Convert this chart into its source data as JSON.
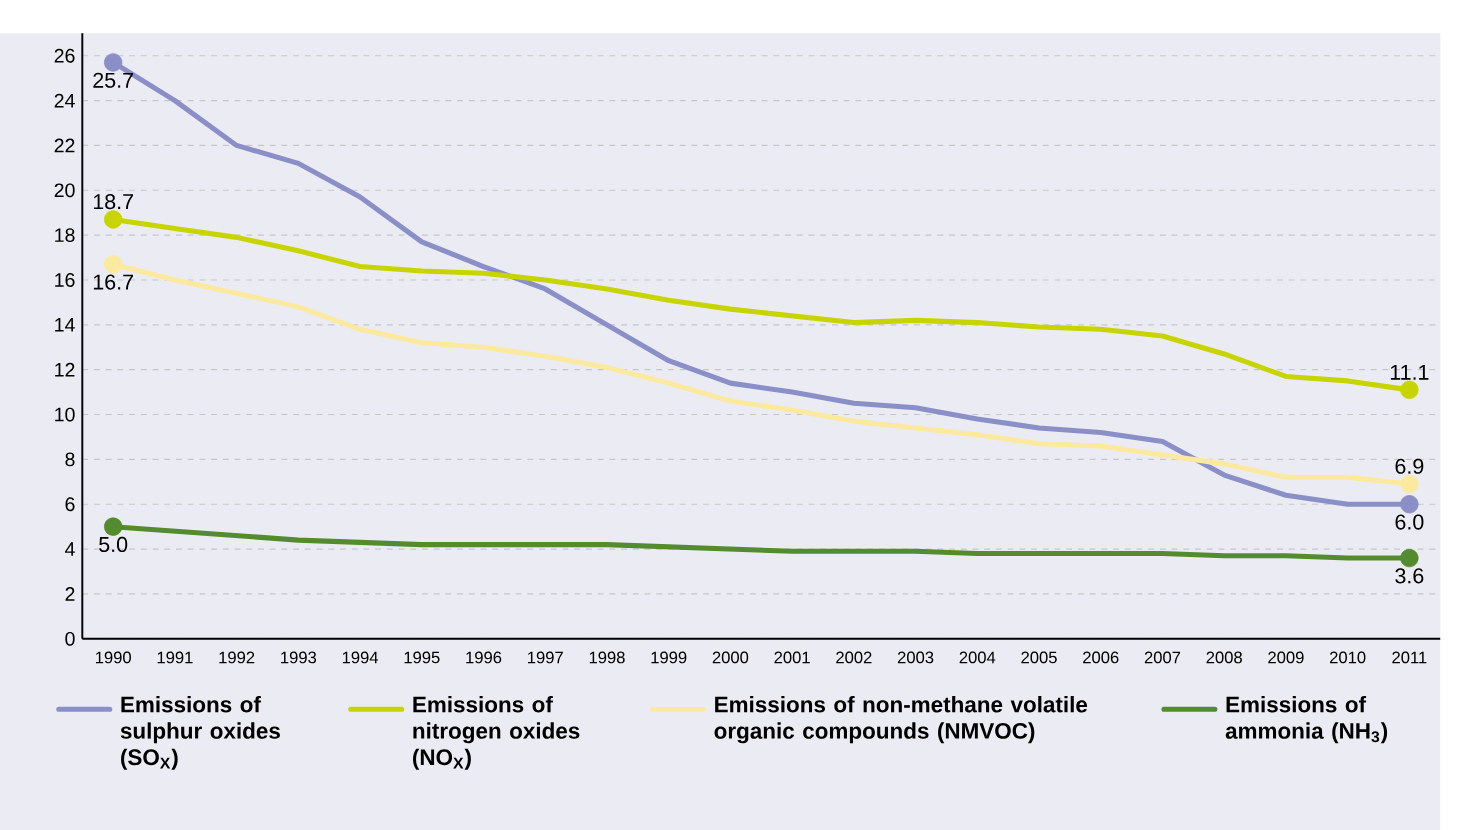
{
  "chart_data": {
    "type": "line",
    "categories": [
      "1990",
      "1991",
      "1992",
      "1993",
      "1994",
      "1995",
      "1996",
      "1997",
      "1998",
      "1999",
      "2000",
      "2001",
      "2002",
      "2003",
      "2004",
      "2005",
      "2006",
      "2007",
      "2008",
      "2009",
      "2010",
      "2011"
    ],
    "ylim": [
      0,
      27
    ],
    "yticks": [
      0,
      2,
      4,
      6,
      8,
      10,
      12,
      14,
      16,
      18,
      20,
      22,
      24,
      26
    ],
    "grid": "y",
    "legend": "bottom",
    "line_style": "solid",
    "series": [
      {
        "name": "Emissions of sulphur oxides (SO$_{X}$)",
        "color": "#8b8fc8",
        "values": [
          25.7,
          24.0,
          22.0,
          21.2,
          19.7,
          17.7,
          16.6,
          15.6,
          14.0,
          12.4,
          11.4,
          11.0,
          10.5,
          10.3,
          9.8,
          9.4,
          9.2,
          8.8,
          7.3,
          6.4,
          6.0,
          6.0
        ],
        "value_labels": [
          "25.7",
          null,
          null,
          null,
          null,
          null,
          null,
          null,
          null,
          null,
          null,
          null,
          null,
          null,
          null,
          null,
          null,
          null,
          null,
          null,
          null,
          "6.0"
        ]
      },
      {
        "name": "Emissions of nitrogen oxides (NO$_{X}$)",
        "color": "#c8d400",
        "values": [
          18.7,
          18.3,
          17.9,
          17.3,
          16.6,
          16.4,
          16.3,
          16.0,
          15.6,
          15.1,
          14.7,
          14.4,
          14.1,
          14.2,
          14.1,
          13.9,
          13.8,
          13.5,
          12.7,
          11.7,
          11.5,
          11.1
        ],
        "value_labels": [
          "18.7",
          null,
          null,
          null,
          null,
          null,
          null,
          null,
          null,
          null,
          null,
          null,
          null,
          null,
          null,
          null,
          null,
          null,
          null,
          null,
          null,
          "11.1"
        ]
      },
      {
        "name": "Emissions of non-methane volatile organic compounds (NMVOC)",
        "color": "#fbe9a0",
        "values": [
          16.7,
          16.0,
          15.4,
          14.8,
          13.8,
          13.2,
          13.0,
          12.6,
          12.1,
          11.4,
          10.6,
          10.2,
          9.7,
          9.4,
          9.1,
          8.7,
          8.6,
          8.2,
          7.8,
          7.2,
          7.2,
          6.9
        ],
        "value_labels": [
          "16.7",
          null,
          null,
          null,
          null,
          null,
          null,
          null,
          null,
          null,
          null,
          null,
          null,
          null,
          null,
          null,
          null,
          null,
          null,
          null,
          null,
          "6.9"
        ]
      },
      {
        "name": "Emissions of ammonia (NH$_{3}$)",
        "color": "#558b2f",
        "values": [
          5.0,
          4.8,
          4.6,
          4.4,
          4.3,
          4.2,
          4.2,
          4.2,
          4.2,
          4.1,
          4.0,
          3.9,
          3.9,
          3.9,
          3.8,
          3.8,
          3.8,
          3.8,
          3.7,
          3.7,
          3.6,
          3.6
        ],
        "value_labels": [
          "5.0",
          null,
          null,
          null,
          null,
          null,
          null,
          null,
          null,
          null,
          null,
          null,
          null,
          null,
          null,
          null,
          null,
          null,
          null,
          null,
          null,
          "3.6"
        ]
      }
    ]
  }
}
